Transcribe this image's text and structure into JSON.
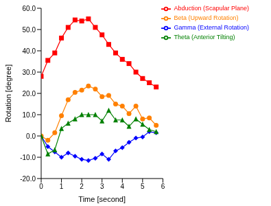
{
  "chart_data": {
    "type": "line",
    "title": null,
    "x_label": "Time [second]",
    "y_label": "Rotation [degree]",
    "x": [
      0,
      0.33,
      0.67,
      1.0,
      1.33,
      1.67,
      2.0,
      2.33,
      2.67,
      3.0,
      3.33,
      3.67,
      4.0,
      4.33,
      4.67,
      5.0,
      5.33,
      5.67
    ],
    "series": [
      {
        "name": "Gamma (External Rotation)",
        "color": "#0000ff",
        "marker": "diamond",
        "values": [
          0,
          -5,
          -7.5,
          -10,
          -8,
          -9.5,
          -11,
          -11.5,
          -10.5,
          -8.5,
          -11,
          -7,
          -5.5,
          -3,
          -1,
          -0.5,
          2,
          1.5
        ]
      },
      {
        "name": "Beta (Upward Rotation)",
        "color": "#ff8000",
        "marker": "circle",
        "values": [
          0,
          -2,
          1.5,
          9.5,
          17,
          20.5,
          21.5,
          23.5,
          22,
          18.5,
          19,
          15,
          14,
          10.5,
          14,
          8,
          8.5,
          5
        ]
      },
      {
        "name": "Theta (Anterior Tilting)",
        "color": "#008000",
        "marker": "triangle",
        "values": [
          0,
          -8.5,
          -6.5,
          3.5,
          6,
          8,
          10,
          10,
          10,
          7,
          12,
          7.5,
          7.5,
          4.5,
          8,
          5.5,
          3,
          2
        ]
      },
      {
        "name": "Abduction (Scapular Plane)",
        "color": "#ff0000",
        "marker": "square",
        "values": [
          28,
          35.5,
          39,
          46,
          51,
          54.5,
          54,
          55,
          51,
          47.5,
          43,
          39,
          36,
          34,
          30,
          27,
          25,
          23
        ]
      }
    ],
    "xlim": [
      0,
      6
    ],
    "xticks": [
      0,
      1,
      2,
      3,
      4,
      5,
      6
    ],
    "ylim": [
      -20,
      60
    ],
    "yticks": [
      {
        "value": -20,
        "label": "-20.0"
      },
      {
        "value": -10,
        "label": "-10.0"
      },
      {
        "value": 0,
        "label": "0.0"
      },
      {
        "value": 10,
        "label": "10.0"
      },
      {
        "value": 20,
        "label": "20.0"
      },
      {
        "value": 30,
        "label": "30.0"
      },
      {
        "value": 40,
        "label": "40.0"
      },
      {
        "value": 50,
        "label": "50.0"
      },
      {
        "value": 60,
        "label": "60.0"
      }
    ],
    "grid": false,
    "legend": "upper right"
  }
}
